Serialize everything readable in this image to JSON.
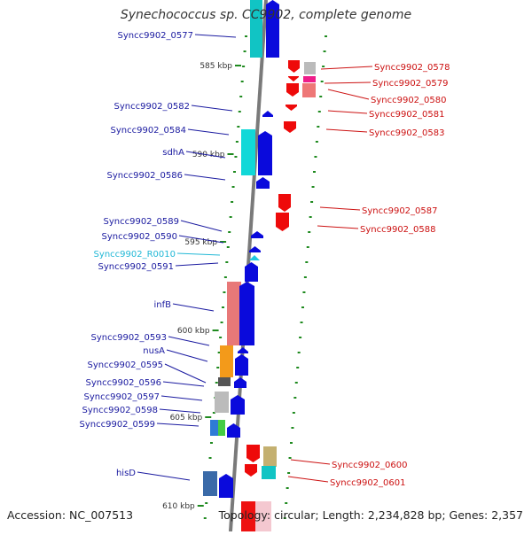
{
  "title": "Synechococcus sp. CC9902, complete genome",
  "footer": {
    "accession": "Accession: NC_007513",
    "summary": "Topology: circular; Length: 2,234,828 bp; Genes: 2,357"
  },
  "colors": {
    "backbone": "#7a7a7a",
    "forward_label": "#1a1aa0",
    "reverse_label": "#cc1111",
    "rna_label": "#22b8d6",
    "forward_arrow": "#0a0adc",
    "reverse_arrow": "#ee0a0a",
    "tick": "#1f8a1f"
  },
  "scale_labels": [
    "585 kbp",
    "590 kbp",
    "595 kbp",
    "600 kbp",
    "605 kbp",
    "610 kbp"
  ],
  "left_labels": [
    "Syncc9902_0577",
    "Syncc9902_0582",
    "Syncc9902_0584",
    "sdhA",
    "Syncc9902_0586",
    "Syncc9902_0589",
    "Syncc9902_0590",
    "Syncc9902_R0010",
    "Syncc9902_0591",
    "infB",
    "Syncc9902_0593",
    "nusA",
    "Syncc9902_0595",
    "Syncc9902_0596",
    "Syncc9902_0597",
    "Syncc9902_0598",
    "Syncc9902_0599",
    "hisD"
  ],
  "right_labels": [
    "Syncc9902_0578",
    "Syncc9902_0579",
    "Syncc9902_0580",
    "Syncc9902_0581",
    "Syncc9902_0583",
    "Syncc9902_0587",
    "Syncc9902_0588",
    "Syncc9902_0600",
    "Syncc9902_0601"
  ]
}
